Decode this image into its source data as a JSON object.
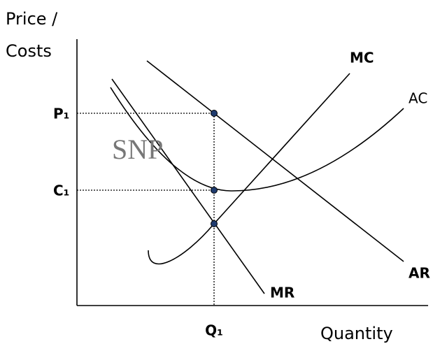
{
  "y_axis_label": [
    "Price /",
    "Costs"
  ],
  "x_axis_label": "Quantity",
  "price_label": "P₁",
  "cost_label": "C₁",
  "quantity_label": "Q₁",
  "curves": {
    "mc": "MC",
    "ac": "AC",
    "ar": "AR",
    "mr": "MR"
  },
  "watermark": "SNP"
}
